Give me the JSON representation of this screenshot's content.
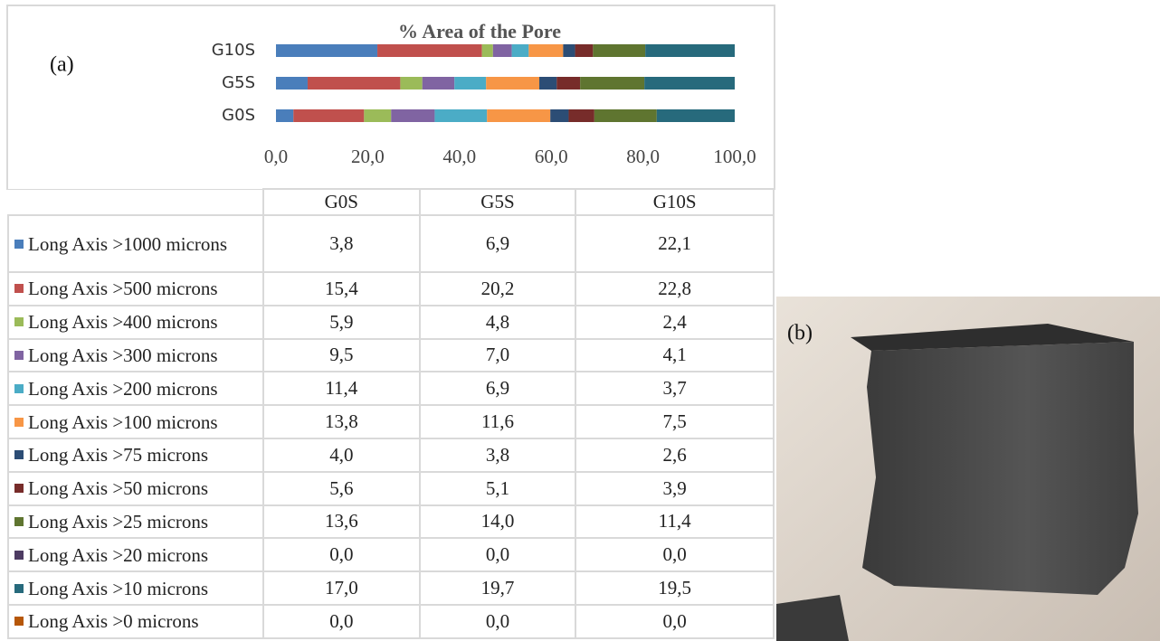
{
  "chart_data": {
    "type": "stacked-barh",
    "title": "% Area of the Pore",
    "categories": [
      "G0S",
      "G5S",
      "G10S"
    ],
    "xlim": [
      0,
      100
    ],
    "xticks": [
      {
        "value": 0,
        "label": "0,0"
      },
      {
        "value": 20,
        "label": "20,0"
      },
      {
        "value": 40,
        "label": "40,0"
      },
      {
        "value": 60,
        "label": "60,0"
      },
      {
        "value": 80,
        "label": "80,0"
      },
      {
        "value": 100,
        "label": "100,0"
      }
    ],
    "series": [
      {
        "name": "Long Axis >1000 microns",
        "color": "#4a7ebb",
        "values": [
          3.8,
          6.9,
          22.1
        ],
        "value_labels": [
          "3,8",
          "6,9",
          "22,1"
        ]
      },
      {
        "name": "Long Axis >500 microns",
        "color": "#c0504d",
        "values": [
          15.4,
          20.2,
          22.8
        ],
        "value_labels": [
          "15,4",
          "20,2",
          "22,8"
        ]
      },
      {
        "name": "Long Axis >400 microns",
        "color": "#9bbb59",
        "values": [
          5.9,
          4.8,
          2.4
        ],
        "value_labels": [
          "5,9",
          "4,8",
          "2,4"
        ]
      },
      {
        "name": "Long Axis >300 microns",
        "color": "#8064a2",
        "values": [
          9.5,
          7.0,
          4.1
        ],
        "value_labels": [
          "9,5",
          "7,0",
          "4,1"
        ]
      },
      {
        "name": "Long Axis >200 microns",
        "color": "#4bacc6",
        "values": [
          11.4,
          6.9,
          3.7
        ],
        "value_labels": [
          "11,4",
          "6,9",
          "3,7"
        ]
      },
      {
        "name": "Long Axis >100 microns",
        "color": "#f79646",
        "values": [
          13.8,
          11.6,
          7.5
        ],
        "value_labels": [
          "13,8",
          "11,6",
          "7,5"
        ]
      },
      {
        "name": "Long Axis >75 microns",
        "color": "#2c4d75",
        "values": [
          4.0,
          3.8,
          2.6
        ],
        "value_labels": [
          "4,0",
          "3,8",
          "2,6"
        ]
      },
      {
        "name": "Long Axis >50 microns",
        "color": "#772c2a",
        "values": [
          5.6,
          5.1,
          3.9
        ],
        "value_labels": [
          "5,6",
          "5,1",
          "3,9"
        ]
      },
      {
        "name": "Long Axis >25 microns",
        "color": "#5f7530",
        "values": [
          13.6,
          14.0,
          11.4
        ],
        "value_labels": [
          "13,6",
          "14,0",
          "11,4"
        ]
      },
      {
        "name": "Long Axis >20 microns",
        "color": "#4d3b62",
        "values": [
          0.0,
          0.0,
          0.0
        ],
        "value_labels": [
          "0,0",
          "0,0",
          "0,0"
        ]
      },
      {
        "name": "Long Axis >10 microns",
        "color": "#276a7c",
        "values": [
          17.0,
          19.7,
          19.5
        ],
        "value_labels": [
          "17,0",
          "19,7",
          "19,5"
        ]
      },
      {
        "name": "Long Axis >0 microns",
        "color": "#b65708",
        "values": [
          0.0,
          0.0,
          0.0
        ],
        "value_labels": [
          "0,0",
          "0,0",
          "0,0"
        ]
      }
    ]
  },
  "panel_labels": {
    "a": "(a)",
    "b": "(b)"
  }
}
